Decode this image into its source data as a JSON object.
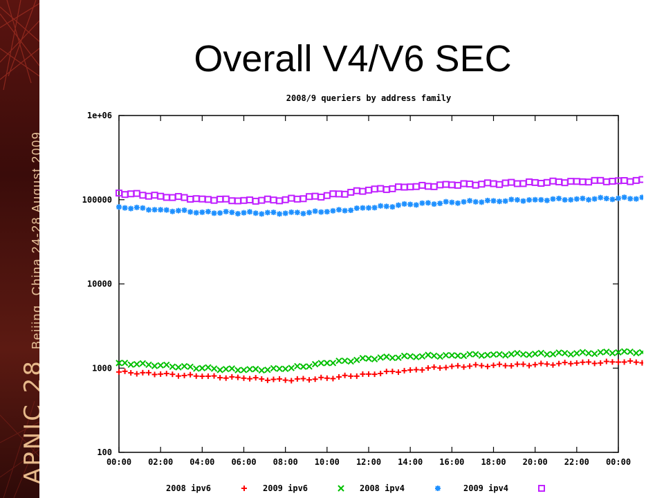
{
  "slide": {
    "title": "Overall V4/V6 SEC",
    "sidebar_logo": "APNIC 28",
    "sidebar_info": "Beijing, China  24-28 August 2009"
  },
  "chart_data": {
    "type": "scatter",
    "title": "2008/9 queriers by address family",
    "xlabel": "",
    "ylabel": "",
    "y_scale": "log",
    "ylim": [
      100,
      1000000
    ],
    "y_ticks": [
      "100",
      "1000",
      "10000",
      "100000",
      "1e+06"
    ],
    "y_tick_values": [
      100,
      1000,
      10000,
      100000,
      1000000
    ],
    "x_ticks": [
      "00:00",
      "02:00",
      "04:00",
      "06:00",
      "08:00",
      "10:00",
      "12:00",
      "14:00",
      "16:00",
      "18:00",
      "20:00",
      "22:00",
      "00:00"
    ],
    "grid": false,
    "legend_position": "bottom",
    "series": [
      {
        "name": "2008 ipv6",
        "marker": "+",
        "color": "#ff0000",
        "x": [
          0,
          1,
          2,
          3,
          4,
          5,
          6,
          7,
          8,
          9,
          10,
          11,
          12,
          13,
          14,
          15,
          16,
          17,
          18,
          19,
          20,
          21,
          22,
          23,
          24
        ],
        "values": [
          900,
          850,
          800,
          760,
          720,
          760,
          850,
          950,
          1050,
          1080,
          1100,
          1150,
          1180,
          1190,
          1200,
          1200,
          1200,
          1190,
          1180,
          1160,
          1120,
          1050,
          950,
          900,
          850
        ]
      },
      {
        "name": "2009 ipv6",
        "marker": "x",
        "color": "#00c000",
        "x": [
          0,
          1,
          2,
          3,
          4,
          5,
          6,
          7,
          8,
          9,
          10,
          11,
          12,
          13,
          14,
          15,
          16,
          17,
          18,
          19,
          20,
          21,
          22,
          23,
          24
        ],
        "values": [
          1150,
          1080,
          1000,
          950,
          980,
          1150,
          1300,
          1380,
          1420,
          1450,
          1480,
          1500,
          1540,
          1560,
          1580,
          1600,
          1600,
          1620,
          1620,
          1580,
          1500,
          1380,
          1250,
          1150,
          1100
        ]
      },
      {
        "name": "2008 ipv4",
        "marker": "*",
        "color": "#1e90ff",
        "x": [
          0,
          1,
          2,
          3,
          4,
          5,
          6,
          7,
          8,
          9,
          10,
          11,
          12,
          13,
          14,
          15,
          16,
          17,
          18,
          19,
          20,
          21,
          22,
          23,
          24
        ],
        "values": [
          82000,
          76000,
          71000,
          70000,
          69000,
          72000,
          80000,
          88000,
          93000,
          97000,
          100000,
          102000,
          104000,
          105000,
          106000,
          106000,
          105000,
          105000,
          104000,
          103000,
          100000,
          96000,
          90000,
          85000,
          80000
        ]
      },
      {
        "name": "2009 ipv4",
        "marker": "square",
        "color": "#c020ff",
        "x": [
          0,
          1,
          2,
          3,
          4,
          5,
          6,
          7,
          8,
          9,
          10,
          11,
          12,
          13,
          14,
          15,
          16,
          17,
          18,
          19,
          20,
          21,
          22,
          23,
          24
        ],
        "values": [
          120000,
          110000,
          102000,
          98000,
          100000,
          112000,
          130000,
          142000,
          150000,
          155000,
          160000,
          165000,
          168000,
          170000,
          172000,
          174000,
          174000,
          173000,
          172000,
          168000,
          160000,
          148000,
          135000,
          122000,
          112000
        ]
      }
    ]
  }
}
